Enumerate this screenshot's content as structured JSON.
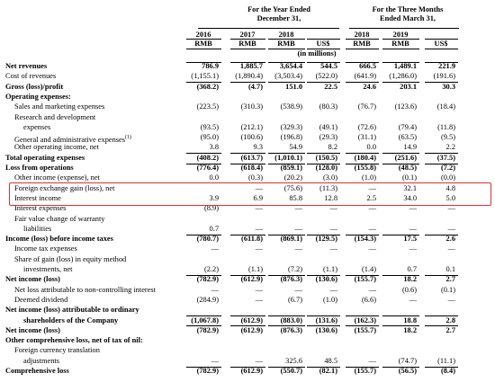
{
  "header": {
    "group_year": "For the Year Ended\nDecember 31,",
    "group_quarter": "For the Three Months\nEnded March 31,",
    "years": [
      "2016",
      "2017",
      "2018",
      "",
      "2018",
      "2019",
      ""
    ],
    "currencies": [
      "RMB",
      "RMB",
      "RMB",
      "US$",
      "RMB",
      "RMB",
      "US$"
    ],
    "units": "(in millions)"
  },
  "rows": [
    {
      "label": "Net revenues",
      "indent": 0,
      "bold": true,
      "values": [
        "786.9",
        "1,885.7",
        "3,654.4",
        "544.5",
        "666.5",
        "1,489.1",
        "221.9"
      ]
    },
    {
      "label": "Cost of revenues",
      "indent": 0,
      "bold": false,
      "values": [
        "(1,155.1)",
        "(1,890.4)",
        "(3,503.4)",
        "(522.0)",
        "(641.9)",
        "(1,286.0)",
        "(191.6)"
      ]
    },
    {
      "label": "Gross (loss)/profit",
      "indent": 0,
      "bold": true,
      "values": [
        "(368.2)",
        "(4.7)",
        "151.0",
        "22.5",
        "24.6",
        "203.1",
        "30.3"
      ]
    },
    {
      "label": "Operating expenses:",
      "indent": 0,
      "bold": true,
      "values": [
        "",
        "",
        "",
        "",
        "",
        "",
        ""
      ]
    },
    {
      "label": "Sales and marketing expenses",
      "indent": 1,
      "bold": false,
      "values": [
        "(223.5)",
        "(310.3)",
        "(538.9)",
        "(80.3)",
        "(76.7)",
        "(123.6)",
        "(18.4)"
      ]
    },
    {
      "label": "Research and development",
      "indent": 1,
      "bold": false,
      "values": [
        "",
        "",
        "",
        "",
        "",
        "",
        ""
      ]
    },
    {
      "label": "expenses",
      "indent": 2,
      "bold": false,
      "values": [
        "(93.5)",
        "(212.1)",
        "(329.3)",
        "(49.1)",
        "(72.6)",
        "(79.4)",
        "(11.8)"
      ]
    },
    {
      "label": "General and administrative expenses",
      "sup": "(1)",
      "indent": 1,
      "bold": false,
      "values": [
        "(95.0)",
        "(100.6)",
        "(196.8)",
        "(29.3)",
        "(31.1)",
        "(63.5)",
        "(9.5)"
      ]
    },
    {
      "label": "Other operating income, net",
      "indent": 1,
      "bold": false,
      "values": [
        "3.8",
        "9.3",
        "54.9",
        "8.2",
        "0.0",
        "14.9",
        "2.2"
      ]
    },
    {
      "label": "Total operating expenses",
      "indent": 0,
      "bold": true,
      "values": [
        "(408.2)",
        "(613.7)",
        "(1,010.1)",
        "(150.5)",
        "(180.4)",
        "(251.6)",
        "(37.5)"
      ]
    },
    {
      "label": "Loss from operations",
      "indent": 0,
      "bold": true,
      "values": [
        "(776.4)",
        "(618.4)",
        "(859.1)",
        "(128.0)",
        "(155.8)",
        "(48.5)",
        "(7.2)"
      ]
    },
    {
      "label": "Other income (expense), net",
      "indent": 1,
      "bold": false,
      "values": [
        "0.0",
        "(0.3)",
        "(20.2)",
        "(3.0)",
        "(1.0)",
        "(0.1)",
        "(0.0)"
      ]
    },
    {
      "label": "Foreign exchange gain (loss), net",
      "indent": 1,
      "bold": false,
      "values": [
        "",
        "—",
        "(75.6)",
        "(11.3)",
        "—",
        "32.1",
        "4.8"
      ]
    },
    {
      "label": "Interest income",
      "indent": 1,
      "bold": false,
      "values": [
        "3.9",
        "6.9",
        "85.8",
        "12.8",
        "2.5",
        "34.0",
        "5.0"
      ]
    },
    {
      "label": "Interest expenses",
      "indent": 1,
      "bold": false,
      "values": [
        "(8.9)",
        "—",
        "—",
        "—",
        "—",
        "—",
        "—"
      ]
    },
    {
      "label": "Fair value change of warranty",
      "indent": 1,
      "bold": false,
      "values": [
        "",
        "",
        "",
        "",
        "",
        "",
        ""
      ]
    },
    {
      "label": "liabilities",
      "indent": 2,
      "bold": false,
      "values": [
        "0.7",
        "—",
        "—",
        "—",
        "—",
        "—",
        "—"
      ]
    },
    {
      "label": "Income (loss) before income taxes",
      "indent": 0,
      "bold": true,
      "values": [
        "(780.7)",
        "(611.8)",
        "(869.1)",
        "(129.5)",
        "(154.3)",
        "17.5",
        "2.6"
      ]
    },
    {
      "label": "Income tax expenses",
      "indent": 1,
      "bold": false,
      "values": [
        "—",
        "—",
        "—",
        "—",
        "—",
        "—",
        "—"
      ]
    },
    {
      "label": "Share of gain (loss) in equity method",
      "indent": 1,
      "bold": false,
      "values": [
        "",
        "",
        "",
        "",
        "",
        "",
        ""
      ]
    },
    {
      "label": "investments, net",
      "indent": 2,
      "bold": false,
      "values": [
        "(2.2)",
        "(1.1)",
        "(7.2)",
        "(1.1)",
        "(1.4)",
        "0.7",
        "0.1"
      ]
    },
    {
      "label": "Net income (loss)",
      "indent": 0,
      "bold": true,
      "values": [
        "(782.9)",
        "(612.9)",
        "(876.3)",
        "(130.6)",
        "(155.7)",
        "18.2",
        "2.7"
      ]
    },
    {
      "label": "Net loss attributable to non-controlling interest",
      "indent": 1,
      "bold": false,
      "values": [
        "—",
        "—",
        "—",
        "—",
        "—",
        "(0.6)",
        "(0.1)"
      ]
    },
    {
      "label": "Deemed dividend",
      "indent": 1,
      "bold": false,
      "values": [
        "(284.9)",
        "—",
        "(6.7)",
        "(1.0)",
        "(6.6)",
        "—",
        "—"
      ]
    },
    {
      "label": "Net income (loss) attributable to ordinary",
      "indent": 0,
      "bold": true,
      "values": [
        "",
        "",
        "",
        "",
        "",
        "",
        ""
      ]
    },
    {
      "label": "shareholders of the Company",
      "indent": 2,
      "bold": true,
      "values": [
        "(1,067.8)",
        "(612.9)",
        "(883.0)",
        "(131.6)",
        "(162.3)",
        "18.8",
        "2.8"
      ]
    },
    {
      "label": "Net income (loss)",
      "indent": 0,
      "bold": true,
      "values": [
        "(782.9)",
        "(612.9)",
        "(876.3)",
        "(130.6)",
        "(155.7)",
        "18.2",
        "2.7"
      ]
    },
    {
      "label": "Other comprehensive loss, net of tax of nil:",
      "indent": 0,
      "bold": true,
      "values": [
        "",
        "",
        "",
        "",
        "",
        "",
        ""
      ]
    },
    {
      "label": "Foreign currency translation",
      "indent": 1,
      "bold": false,
      "values": [
        "",
        "",
        "",
        "",
        "",
        "",
        ""
      ]
    },
    {
      "label": "adjustments",
      "indent": 2,
      "bold": false,
      "values": [
        "—",
        "—",
        "325.6",
        "48.5",
        "—",
        "(74.7)",
        "(11.1)"
      ]
    },
    {
      "label": "Comprehensive loss",
      "indent": 0,
      "bold": true,
      "values": [
        "(782.9)",
        "(612.9)",
        "(550.7)",
        "(82.1)",
        "(155.7)",
        "(56.5)",
        "(8.4)"
      ]
    }
  ],
  "highlight_color": "#e0302f"
}
